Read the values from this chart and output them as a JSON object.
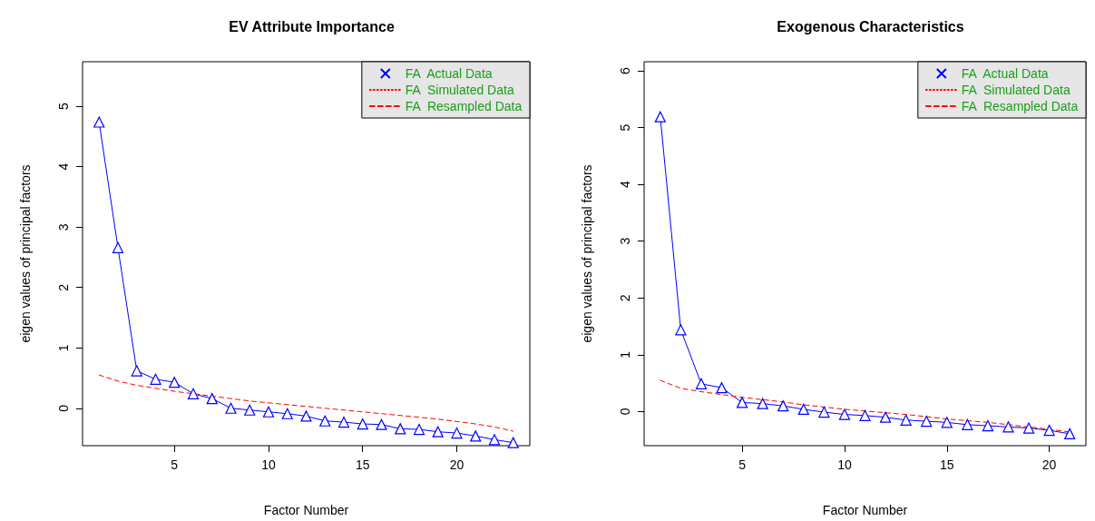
{
  "chart_data": [
    {
      "type": "line",
      "title": "EV Attribute Importance",
      "xlabel": "Factor Number",
      "ylabel": "eigen values of principal factors",
      "x": [
        1,
        2,
        3,
        4,
        5,
        6,
        7,
        8,
        9,
        10,
        11,
        12,
        13,
        14,
        15,
        16,
        17,
        18,
        19,
        20,
        21,
        22,
        23
      ],
      "xlim": [
        0.12,
        23.88
      ],
      "xticks": [
        5,
        10,
        15,
        20
      ],
      "ylim": [
        -0.62,
        5.74
      ],
      "yticks": [
        0,
        1,
        2,
        3,
        4,
        5
      ],
      "legend": "top right",
      "grid": false,
      "series": [
        {
          "name": "FA  Actual Data",
          "color": "#0000ff",
          "marker": "triangle",
          "line_style": "solid",
          "values": [
            4.74,
            2.66,
            0.62,
            0.48,
            0.43,
            0.24,
            0.16,
            0.0,
            -0.03,
            -0.06,
            -0.09,
            -0.13,
            -0.21,
            -0.23,
            -0.26,
            -0.27,
            -0.34,
            -0.35,
            -0.39,
            -0.41,
            -0.46,
            -0.52,
            -0.57
          ]
        },
        {
          "name": "FA  Simulated Data",
          "color": "#ff0000",
          "marker": "none",
          "line_style": "dotted",
          "values": [
            null,
            null,
            null,
            null,
            null,
            null,
            null,
            null,
            null,
            null,
            null,
            null,
            null,
            null,
            null,
            null,
            null,
            null,
            null,
            null,
            null,
            null,
            null
          ]
        },
        {
          "name": "FA  Resampled Data",
          "color": "#ff0000",
          "marker": "none",
          "line_style": "dashed",
          "values": [
            0.55,
            0.45,
            0.38,
            0.33,
            0.28,
            0.24,
            0.2,
            0.16,
            0.12,
            0.09,
            0.06,
            0.03,
            0.0,
            -0.03,
            -0.06,
            -0.09,
            -0.12,
            -0.15,
            -0.18,
            -0.22,
            -0.26,
            -0.31,
            -0.38
          ]
        }
      ]
    },
    {
      "type": "line",
      "title": "Exogenous Characteristics",
      "xlabel": "Factor Number",
      "ylabel": "eigen values of principal factors",
      "x": [
        1,
        2,
        3,
        4,
        5,
        6,
        7,
        8,
        9,
        10,
        11,
        12,
        13,
        14,
        15,
        16,
        17,
        18,
        19,
        20,
        21
      ],
      "xlim": [
        0.21,
        21.79
      ],
      "xticks": [
        5,
        10,
        15,
        20
      ],
      "ylim": [
        -0.6,
        6.16
      ],
      "yticks": [
        0,
        1,
        2,
        3,
        4,
        5,
        6
      ],
      "legend": "top right",
      "grid": false,
      "series": [
        {
          "name": "FA  Actual Data",
          "color": "#0000ff",
          "marker": "triangle",
          "line_style": "solid",
          "values": [
            5.19,
            1.44,
            0.49,
            0.42,
            0.16,
            0.14,
            0.1,
            0.04,
            -0.01,
            -0.05,
            -0.07,
            -0.1,
            -0.15,
            -0.17,
            -0.19,
            -0.23,
            -0.25,
            -0.27,
            -0.29,
            -0.33,
            -0.39
          ]
        },
        {
          "name": "FA  Simulated Data",
          "color": "#ff0000",
          "marker": "none",
          "line_style": "dotted",
          "values": [
            null,
            null,
            null,
            null,
            null,
            null,
            null,
            null,
            null,
            null,
            null,
            null,
            null,
            null,
            null,
            null,
            null,
            null,
            null,
            null,
            null
          ]
        },
        {
          "name": "FA  Resampled Data",
          "color": "#ff0000",
          "marker": "none",
          "line_style": "dashed",
          "values": [
            0.55,
            0.41,
            0.35,
            0.3,
            0.25,
            0.21,
            0.17,
            0.12,
            0.08,
            0.04,
            0.01,
            -0.02,
            -0.05,
            -0.09,
            -0.13,
            -0.16,
            -0.19,
            -0.23,
            -0.27,
            -0.31,
            -0.36
          ]
        }
      ]
    }
  ]
}
